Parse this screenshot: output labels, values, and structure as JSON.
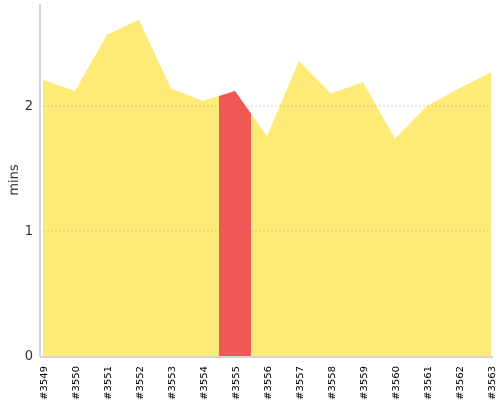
{
  "chart_data": {
    "type": "area",
    "y_label": "mins",
    "categories": [
      "#3549",
      "#3550",
      "#3551",
      "#3552",
      "#3553",
      "#3554",
      "#3555",
      "#3556",
      "#3557",
      "#3558",
      "#3559",
      "#3560",
      "#3561",
      "#3562",
      "#3563"
    ],
    "values": [
      2.21,
      2.12,
      2.57,
      2.69,
      2.14,
      2.04,
      2.12,
      1.76,
      2.36,
      2.1,
      2.19,
      1.74,
      2.0,
      2.14,
      2.27
    ],
    "color": "#feeb77",
    "highlight": {
      "index": 6,
      "color": "#f25757"
    },
    "ylim": [
      0,
      2.8
    ],
    "yticks": [
      0,
      1,
      2
    ],
    "grid": true
  }
}
